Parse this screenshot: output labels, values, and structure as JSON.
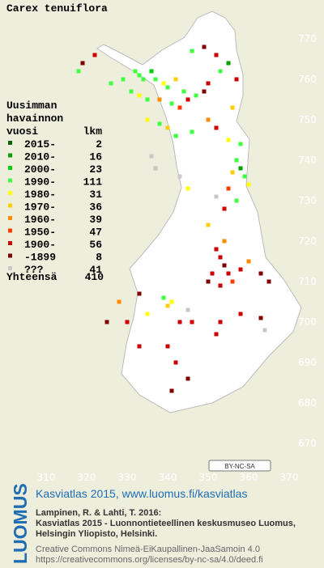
{
  "map": {
    "title": "Carex tenuiflora",
    "legend": {
      "header": [
        "Uusimman",
        "havainnon",
        "vuosi"
      ],
      "count_header": "lkm",
      "classes": [
        {
          "label": "2015-",
          "count": 2,
          "color": "#006400"
        },
        {
          "label": "2010-",
          "count": 16,
          "color": "#00a000"
        },
        {
          "label": "2000-",
          "count": 23,
          "color": "#00d000"
        },
        {
          "label": "1990-",
          "count": 111,
          "color": "#40ff40"
        },
        {
          "label": "1980-",
          "count": 31,
          "color": "#ffff00"
        },
        {
          "label": "1970-",
          "count": 36,
          "color": "#ffcc00"
        },
        {
          "label": "1960-",
          "count": 39,
          "color": "#ff8c00"
        },
        {
          "label": "1950-",
          "count": 47,
          "color": "#ff3c00"
        },
        {
          "label": "1900-",
          "count": 56,
          "color": "#cc0000"
        },
        {
          "label": "-1899",
          "count": 8,
          "color": "#800000"
        },
        {
          "label": "???",
          "count": 41,
          "color": "#c8c8c8"
        }
      ],
      "total_label": "Yhteensä",
      "total": 410
    },
    "xticks": [
      310,
      320,
      330,
      340,
      350,
      360,
      370
    ],
    "yticks": [
      770,
      760,
      750,
      740,
      730,
      720,
      710,
      700,
      690,
      680,
      670
    ],
    "license_badge": "BY-NC-SA",
    "observations": [
      [
        332,
        762,
        3
      ],
      [
        333,
        761,
        3
      ],
      [
        334,
        760,
        3
      ],
      [
        336,
        762,
        2
      ],
      [
        337,
        760,
        3
      ],
      [
        339,
        759,
        4
      ],
      [
        340,
        758,
        3
      ],
      [
        342,
        760,
        5
      ],
      [
        344,
        757,
        3
      ],
      [
        331,
        757,
        3
      ],
      [
        333,
        756,
        4
      ],
      [
        335,
        755,
        3
      ],
      [
        338,
        755,
        6
      ],
      [
        341,
        754,
        3
      ],
      [
        343,
        753,
        7
      ],
      [
        345,
        755,
        8
      ],
      [
        347,
        756,
        3
      ],
      [
        349,
        757,
        9
      ],
      [
        350,
        759,
        8
      ],
      [
        353,
        762,
        3
      ],
      [
        355,
        764,
        1
      ],
      [
        352,
        766,
        8
      ],
      [
        349,
        768,
        9
      ],
      [
        346,
        767,
        3
      ],
      [
        357,
        760,
        8
      ],
      [
        356,
        753,
        5
      ],
      [
        329,
        760,
        3
      ],
      [
        326,
        759,
        3
      ],
      [
        319,
        764,
        9
      ],
      [
        318,
        762,
        3
      ],
      [
        322,
        766,
        8
      ],
      [
        335,
        750,
        4
      ],
      [
        338,
        749,
        3
      ],
      [
        340,
        748,
        5
      ],
      [
        342,
        746,
        3
      ],
      [
        346,
        747,
        3
      ],
      [
        350,
        750,
        6
      ],
      [
        352,
        748,
        8
      ],
      [
        355,
        745,
        4
      ],
      [
        358,
        744,
        3
      ],
      [
        357,
        740,
        3
      ],
      [
        358,
        738,
        1
      ],
      [
        359,
        736,
        3
      ],
      [
        360,
        734,
        4
      ],
      [
        356,
        737,
        5
      ],
      [
        355,
        733,
        7
      ],
      [
        357,
        730,
        3
      ],
      [
        354,
        728,
        8
      ],
      [
        352,
        731,
        10
      ],
      [
        345,
        733,
        4
      ],
      [
        343,
        736,
        10
      ],
      [
        336,
        741,
        10
      ],
      [
        337,
        738,
        10
      ],
      [
        352,
        718,
        8
      ],
      [
        353,
        716,
        8
      ],
      [
        354,
        714,
        9
      ],
      [
        355,
        712,
        8
      ],
      [
        351,
        712,
        8
      ],
      [
        350,
        710,
        9
      ],
      [
        353,
        709,
        8
      ],
      [
        356,
        710,
        7
      ],
      [
        358,
        713,
        8
      ],
      [
        360,
        715,
        6
      ],
      [
        363,
        712,
        9
      ],
      [
        365,
        710,
        9
      ],
      [
        354,
        720,
        6
      ],
      [
        350,
        724,
        5
      ],
      [
        339,
        706,
        3
      ],
      [
        340,
        704,
        5
      ],
      [
        341,
        705,
        4
      ],
      [
        345,
        703,
        10
      ],
      [
        346,
        700,
        8
      ],
      [
        352,
        697,
        8
      ],
      [
        353,
        700,
        8
      ],
      [
        358,
        702,
        8
      ],
      [
        363,
        701,
        9
      ],
      [
        364,
        698,
        10
      ],
      [
        343,
        700,
        8
      ],
      [
        335,
        702,
        4
      ],
      [
        340,
        694,
        8
      ],
      [
        342,
        690,
        8
      ],
      [
        345,
        686,
        9
      ],
      [
        341,
        683,
        9
      ],
      [
        333,
        694,
        8
      ],
      [
        325,
        700,
        9
      ],
      [
        328,
        705,
        6
      ],
      [
        330,
        700,
        8
      ],
      [
        333,
        707,
        9
      ]
    ]
  },
  "footer": {
    "logo": "LUOMUS",
    "headline": "Kasviatlas 2015, www.luomus.fi/kasviatlas",
    "citation": [
      "Lampinen, R. & Lahti, T. 2016:",
      "Kasviatlas 2015 - Luonnontieteellinen keskusmuseo Luomus,",
      "Helsingin Yliopisto, Helsinki."
    ],
    "license": [
      "Creative Commons Nimeä-EiKaupallinen-JaaSamoin 4.0",
      "https://creativecommons.org/licenses/by-nc-sa/4.0/deed.fi"
    ]
  }
}
